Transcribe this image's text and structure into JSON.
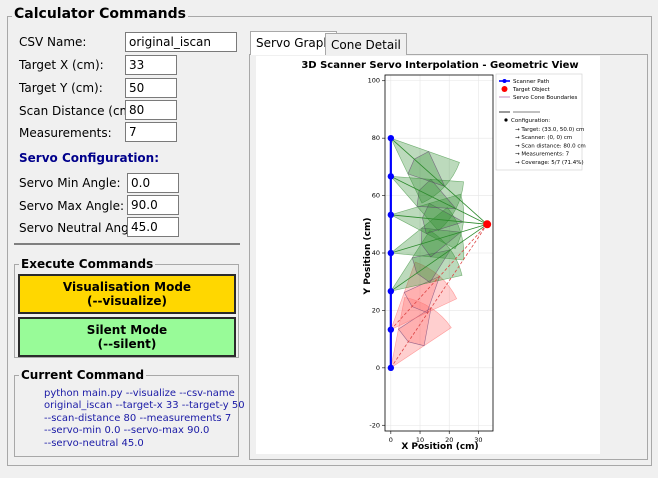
{
  "app": {
    "title": "Calculator Commands"
  },
  "fields": [
    {
      "label": "CSV Name:",
      "value": "original_iscan"
    },
    {
      "label": "Target X (cm):",
      "value": "33"
    },
    {
      "label": "Target Y (cm):",
      "value": "50"
    },
    {
      "label": "Scan Distance (cm):",
      "value": "80"
    },
    {
      "label": "Measurements:",
      "value": "7"
    }
  ],
  "servo": {
    "title": "Servo Configuration:",
    "fields": [
      {
        "label": "Servo Min Angle:",
        "value": "0.0"
      },
      {
        "label": "Servo Max Angle:",
        "value": "90.0"
      },
      {
        "label": "Servo Neutral Angle:",
        "value": "45.0"
      }
    ]
  },
  "execute": {
    "title": "Execute Commands",
    "visual_line1": "Visualisation Mode",
    "visual_line2": "(--visualize)",
    "silent_line1": "Silent Mode",
    "silent_line2": "(--silent)",
    "visual_color": "#ffd700",
    "silent_color": "#98fb98"
  },
  "current": {
    "title": "Current Command",
    "text": "python main.py --visualize --csv-name\noriginal_iscan --target-x 33 --target-y 50\n--scan-distance 80 --measurements 7\n--servo-min 0.0 --servo-max 90.0\n--servo-neutral 45.0"
  },
  "tabs": [
    {
      "label": "Servo Graph",
      "active": true
    },
    {
      "label": "Cone Detail",
      "active": false
    }
  ],
  "chart_data": {
    "type": "scatter",
    "title": "3D Scanner Servo Interpolation - Geometric View",
    "xlabel": "X Position (cm)",
    "ylabel": "Y Position (cm)",
    "xlim": [
      -2,
      35
    ],
    "ylim": [
      -22,
      102
    ],
    "xticks": [
      0,
      10,
      20,
      30
    ],
    "yticks": [
      -20,
      0,
      20,
      40,
      60,
      80,
      100
    ],
    "grid": true,
    "legend_position": "top-right",
    "target": {
      "x": 33,
      "y": 50
    },
    "scanner_points": [
      {
        "x": 0,
        "y": 0
      },
      {
        "x": 0,
        "y": 13.3
      },
      {
        "x": 0,
        "y": 26.7
      },
      {
        "x": 0,
        "y": 40
      },
      {
        "x": 0,
        "y": 53.3
      },
      {
        "x": 0,
        "y": 66.7
      },
      {
        "x": 0,
        "y": 80
      }
    ],
    "covered": [
      false,
      false,
      true,
      true,
      true,
      true,
      true
    ],
    "cone_radius": 25,
    "cone_half_angle_deg": 22.5,
    "legend": [
      {
        "label": "Scanner Path",
        "color": "#0000ff"
      },
      {
        "label": "Target Object",
        "color": "#ff0000"
      },
      {
        "label": "Servo Cone Boundaries",
        "color": "#c8a0c8"
      }
    ],
    "config_title": "Configuration:",
    "config_lines": [
      "→ Target: (33.0, 50.0) cm",
      "→ Scanner: (0, 0) cm",
      "→ Scan distance: 80.0 cm",
      "→ Measurements: 7",
      "→ Coverage: 5/7 (71.4%)"
    ],
    "colors": {
      "covered_fill": "#2e8b2e",
      "uncovered_fill": "#ff6b6b",
      "path": "#0000ff",
      "target": "#ff0000",
      "hit_line": "#2e8b2e",
      "miss_line": "#dd4444"
    }
  }
}
